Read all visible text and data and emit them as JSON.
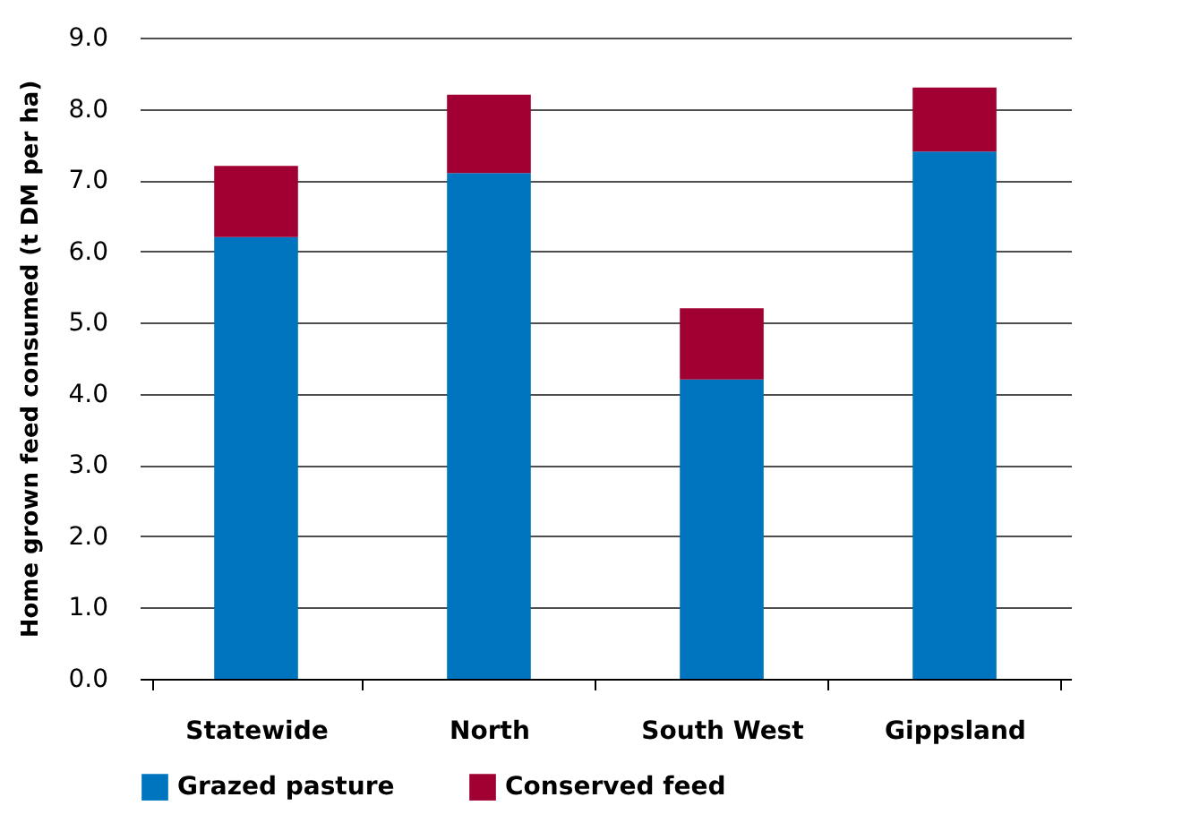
{
  "chart_data": {
    "type": "bar",
    "stacked": true,
    "ylabel": "Home grown feed consumed (t DM per ha)",
    "categories": [
      "Statewide",
      "North",
      "South West",
      "Gippsland"
    ],
    "series": [
      {
        "name": "Grazed pasture",
        "color": "#0075bf",
        "values": [
          6.2,
          7.1,
          4.2,
          7.4
        ]
      },
      {
        "name": "Conserved feed",
        "color": "#a10032",
        "values": [
          1.0,
          1.1,
          1.0,
          0.9
        ]
      }
    ],
    "ylim": [
      0,
      9
    ],
    "yticks": [
      {
        "value": 0,
        "label": "0.0"
      },
      {
        "value": 1,
        "label": "1.0"
      },
      {
        "value": 2,
        "label": "2.0"
      },
      {
        "value": 3,
        "label": "3.0"
      },
      {
        "value": 4,
        "label": "4.0"
      },
      {
        "value": 5,
        "label": "5.0"
      },
      {
        "value": 6,
        "label": "6.0"
      },
      {
        "value": 7,
        "label": "7.0"
      },
      {
        "value": 8,
        "label": "8.0"
      },
      {
        "value": 9,
        "label": "9.0"
      }
    ],
    "grid": "y",
    "legend": "bottom"
  }
}
